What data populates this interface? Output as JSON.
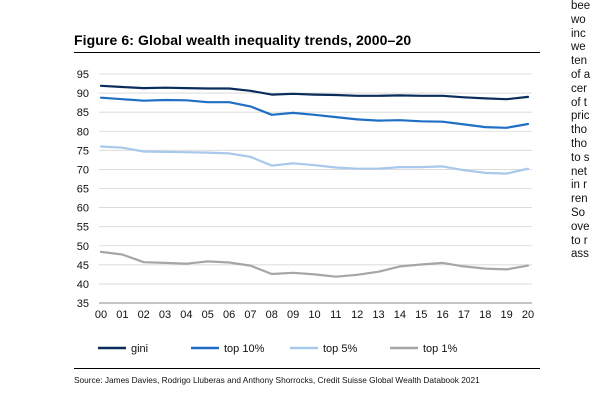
{
  "figure": {
    "title": "Figure 6: Global wealth inequality trends, 2000–20",
    "source": "Source: James Davies, Rodrigo Lluberas and Anthony Shorrocks, Credit Suisse Global Wealth Databook 2021"
  },
  "side_text": [
    "bee",
    "wo",
    "inc",
    "we",
    "ten",
    "of a",
    "cer",
    "of t",
    "pric",
    "tho",
    "tho",
    "to s",
    "net",
    "in r",
    "ren",
    "So",
    "ove",
    "to r",
    "ass"
  ],
  "chart_data": {
    "type": "line",
    "title": "Figure 6: Global wealth inequality trends, 2000–20",
    "xlabel": "",
    "ylabel": "",
    "categories": [
      "00",
      "01",
      "02",
      "03",
      "04",
      "05",
      "06",
      "07",
      "08",
      "09",
      "10",
      "11",
      "12",
      "13",
      "14",
      "15",
      "16",
      "17",
      "18",
      "19",
      "20"
    ],
    "ylim": [
      35,
      95
    ],
    "yticks": [
      35,
      40,
      45,
      50,
      55,
      60,
      65,
      70,
      75,
      80,
      85,
      90,
      95
    ],
    "grid": "horizontal",
    "legend_position": "bottom",
    "series": [
      {
        "name": "gini",
        "color": "#0b2d5c",
        "values": [
          91.9,
          91.6,
          91.3,
          91.4,
          91.3,
          91.2,
          91.2,
          90.6,
          89.6,
          89.8,
          89.6,
          89.5,
          89.3,
          89.3,
          89.4,
          89.3,
          89.3,
          88.9,
          88.6,
          88.4,
          89.0
        ]
      },
      {
        "name": "top 10%",
        "color": "#1f6fc5",
        "values": [
          88.8,
          88.4,
          88.0,
          88.2,
          88.1,
          87.6,
          87.6,
          86.5,
          84.3,
          84.8,
          84.3,
          83.7,
          83.1,
          82.8,
          82.9,
          82.6,
          82.5,
          81.8,
          81.1,
          80.9,
          81.9
        ]
      },
      {
        "name": "top 5%",
        "color": "#a8c8ec",
        "values": [
          76.0,
          75.7,
          74.7,
          74.6,
          74.5,
          74.4,
          74.2,
          73.3,
          71.0,
          71.6,
          71.1,
          70.5,
          70.2,
          70.2,
          70.6,
          70.6,
          70.8,
          69.8,
          69.1,
          68.9,
          70.2
        ]
      },
      {
        "name": "top 1%",
        "color": "#a6a6a6",
        "values": [
          48.4,
          47.7,
          45.7,
          45.5,
          45.3,
          45.9,
          45.6,
          44.8,
          42.6,
          42.9,
          42.5,
          41.9,
          42.4,
          43.2,
          44.6,
          45.1,
          45.5,
          44.6,
          44.0,
          43.8,
          44.8
        ]
      }
    ]
  }
}
